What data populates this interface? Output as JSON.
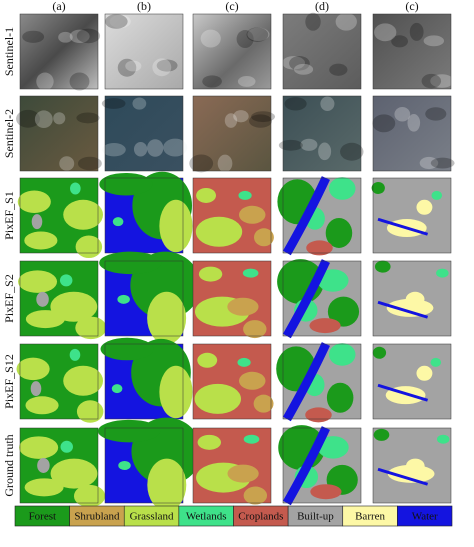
{
  "columns": [
    "(a)",
    "(b)",
    "(c)",
    "(d)",
    "(c)"
  ],
  "rows": [
    "Sentinel-1",
    "Sentinel-2",
    "PixEF_S1",
    "PixEF_S2",
    "PixEF_S12",
    "Ground truth"
  ],
  "legend": {
    "items": [
      {
        "label": "Forest",
        "color": "#1b9a1b"
      },
      {
        "label": "Shrubland",
        "color": "#c9a24e"
      },
      {
        "label": "Grassland",
        "color": "#b9e04a"
      },
      {
        "label": "Wetlands",
        "color": "#3ee28a"
      },
      {
        "label": "Croplands",
        "color": "#c45a4e"
      },
      {
        "label": "Built-up",
        "color": "#a3a3a3"
      },
      {
        "label": "Barren",
        "color": "#fdf8a6"
      },
      {
        "label": "Water",
        "color": "#1414e0"
      }
    ]
  }
}
